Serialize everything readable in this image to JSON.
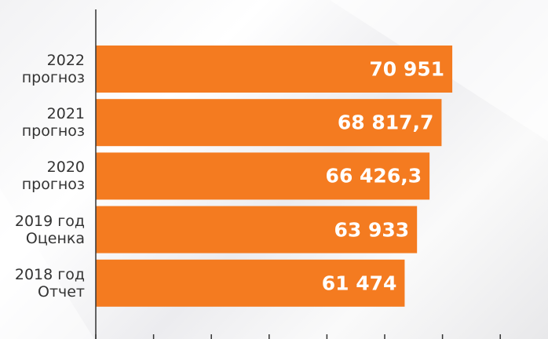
{
  "chart_data": {
    "type": "bar",
    "orientation": "horizontal",
    "categories": [
      "2022\nпрогноз",
      "2021\nпрогноз",
      "2020\nпрогноз",
      "2019 год\nОценка",
      "2018 год\nОтчет"
    ],
    "values": [
      70951,
      68817.7,
      66426.3,
      63933,
      61474
    ],
    "value_labels": [
      "70 951",
      "68 817,7",
      "66 426,3",
      "63 933",
      "61 474"
    ],
    "color": "#f47b20",
    "xlim": [
      0,
      90000
    ],
    "xticks": [
      0,
      11500,
      23000,
      34500,
      46000,
      57500,
      69000,
      80500
    ]
  }
}
